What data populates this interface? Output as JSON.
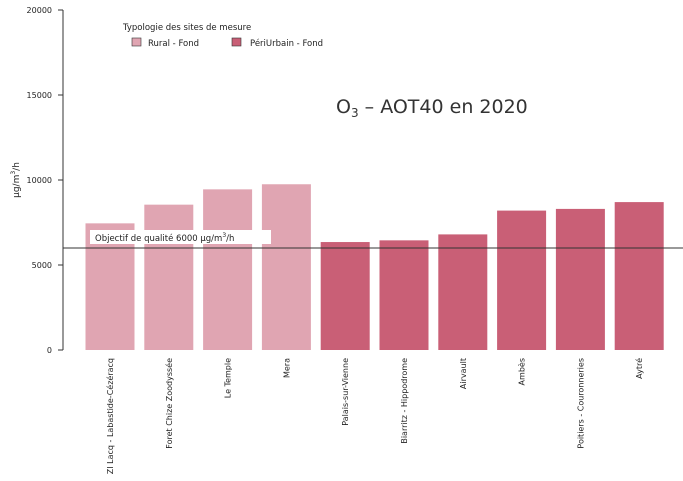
{
  "chart_data": {
    "type": "bar",
    "title_main": "O",
    "title_sub": "3",
    "title_rest": " – AOT40 en 2020",
    "ylabel_main": "µg/m",
    "ylabel_sup": "3",
    "ylabel_rest": "/h",
    "ylim": [
      0,
      20000
    ],
    "yticks": [
      0,
      5000,
      10000,
      15000,
      20000
    ],
    "categories": [
      "ZI Lacq - Labastide-Cézéracq",
      "Foret Chize Zoodyssée",
      "Le Temple",
      "Mera",
      "Palais-sur-Vienne",
      "Biarritz - Hippodrome",
      "Airvault",
      "Ambès",
      "Poitiers - Couronneries",
      "Aytré"
    ],
    "values": [
      7450,
      8550,
      9450,
      9750,
      6350,
      6450,
      6800,
      8200,
      8300,
      8700
    ],
    "groups": [
      "Rural - Fond",
      "Rural - Fond",
      "Rural - Fond",
      "Rural - Fond",
      "PériUrbain - Fond",
      "PériUrbain - Fond",
      "PériUrbain - Fond",
      "PériUrbain - Fond",
      "PériUrbain - Fond",
      "PériUrbain - Fond"
    ],
    "legend": {
      "title": "Typologie des sites de mesure",
      "items": [
        {
          "name": "Rural - Fond",
          "color": "#e0a5b2"
        },
        {
          "name": "PériUrbain - Fond",
          "color": "#c95f76"
        }
      ],
      "placement": "top-left"
    },
    "reference_line": {
      "value": 6000,
      "label_main": "Objectif de qualité 6000 µg/m",
      "label_sup": "3",
      "label_rest": "/h",
      "color": "#333333"
    },
    "grid": false
  }
}
